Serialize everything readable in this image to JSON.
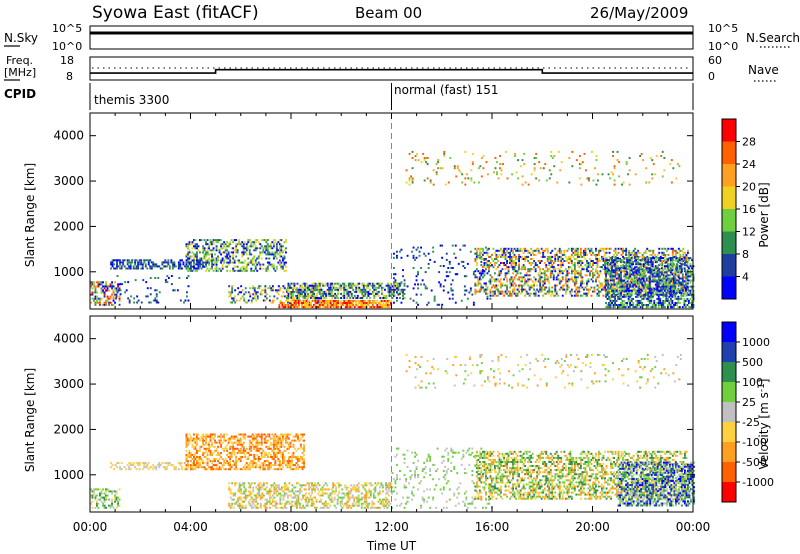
{
  "header": {
    "station": "Syowa East (fitACF)",
    "beam": "Beam 00",
    "date": "26/May/2009"
  },
  "colors": {
    "power_scale": [
      "#0000ff",
      "#1f3fa0",
      "#2f8f4f",
      "#6fcf3f",
      "#f0d020",
      "#ffa020",
      "#ff6000",
      "#ff0000"
    ],
    "velocity_scale": [
      "#0000ff",
      "#2040b0",
      "#2f8f4f",
      "#6fcf3f",
      "#c0c0c0",
      "#ffd040",
      "#ffa020",
      "#ff6000",
      "#ff0000"
    ]
  },
  "chart_data": [
    {
      "type": "line",
      "name": "nsky-panel",
      "ylabel": "N.Sky",
      "ylabel_right": "N.Search",
      "legend_right_style": "dotted",
      "y_ticks_left": [
        "10^5",
        "10^0"
      ],
      "y_ticks_right": [
        "10^5",
        "10^0"
      ]
    },
    {
      "type": "line",
      "name": "freq-panel",
      "ylabel": "Freq.",
      "ylabel_unit": "[MHz]",
      "ylabel_right": "Nave",
      "legend_right_style": "dotted",
      "y_ticks_left": [
        "18",
        "8"
      ],
      "y_ticks_right": [
        "60",
        "0"
      ],
      "series": [
        {
          "name": "Freq.",
          "x": [
            0,
            5.0,
            5.0,
            18.0,
            18.0,
            24
          ],
          "values": [
            11.0,
            11.0,
            12.5,
            12.5,
            11.0,
            11.0
          ]
        }
      ]
    },
    {
      "type": "table",
      "name": "cpid-bar",
      "label": "CPID",
      "segments": [
        {
          "start": 0,
          "end": 12,
          "label": "themis 3300"
        },
        {
          "start": 12,
          "end": 24,
          "label": "normal (fast) 151"
        }
      ]
    },
    {
      "type": "heatmap",
      "name": "power-panel",
      "ylabel": "Slant Range [km]",
      "ylim": [
        180,
        4500
      ],
      "y_ticks": [
        1000,
        2000,
        3000,
        4000
      ],
      "xlim": [
        0,
        24
      ],
      "colorbar": {
        "label": "Power [dB]",
        "ticks": [
          "4",
          "8",
          "12",
          "16",
          "20",
          "24",
          "28"
        ]
      },
      "bands": [
        {
          "t0": 0.0,
          "t1": 1.2,
          "r0": 250,
          "r1": 750,
          "density": 0.5,
          "levels": [
            0,
            1,
            2,
            3,
            5,
            6,
            7
          ]
        },
        {
          "t0": 0.8,
          "t1": 4.5,
          "r0": 1050,
          "r1": 1250,
          "density": 0.5,
          "levels": [
            0,
            1,
            2
          ]
        },
        {
          "t0": 1.0,
          "t1": 4.0,
          "r0": 300,
          "r1": 900,
          "density": 0.08,
          "levels": [
            0,
            1,
            2
          ]
        },
        {
          "t0": 3.8,
          "t1": 7.8,
          "r0": 1000,
          "r1": 1700,
          "density": 0.45,
          "levels": [
            0,
            1,
            2,
            3,
            4
          ]
        },
        {
          "t0": 5.5,
          "t1": 9.2,
          "r0": 300,
          "r1": 700,
          "density": 0.3,
          "levels": [
            0,
            1,
            2,
            3,
            4,
            5
          ]
        },
        {
          "t0": 7.5,
          "t1": 12.0,
          "r0": 200,
          "r1": 380,
          "density": 0.75,
          "levels": [
            4,
            5,
            6,
            7
          ]
        },
        {
          "t0": 7.8,
          "t1": 12.5,
          "r0": 400,
          "r1": 750,
          "density": 0.6,
          "levels": [
            0,
            1,
            2,
            3,
            4
          ]
        },
        {
          "t0": 12.0,
          "t1": 16.0,
          "r0": 250,
          "r1": 1600,
          "density": 0.08,
          "levels": [
            0,
            1,
            2
          ]
        },
        {
          "t0": 15.3,
          "t1": 23.8,
          "r0": 450,
          "r1": 1500,
          "density": 0.45,
          "levels": [
            0,
            1,
            2,
            3,
            4,
            5,
            6
          ]
        },
        {
          "t0": 12.5,
          "t1": 23.5,
          "r0": 2900,
          "r1": 3650,
          "density": 0.06,
          "levels": [
            2,
            3,
            4,
            5,
            6
          ]
        },
        {
          "t0": 20.5,
          "t1": 24.0,
          "r0": 200,
          "r1": 1300,
          "density": 0.55,
          "levels": [
            0,
            1,
            2,
            3
          ]
        }
      ]
    },
    {
      "type": "heatmap",
      "name": "velocity-panel",
      "ylabel": "Slant Range [km]",
      "xlabel": "Time UT",
      "ylim": [
        180,
        4500
      ],
      "y_ticks": [
        1000,
        2000,
        3000,
        4000
      ],
      "xlim": [
        0,
        24
      ],
      "x_ticks": [
        0,
        4,
        8,
        12,
        16,
        20,
        24
      ],
      "x_tick_labels": [
        "00:00",
        "04:00",
        "08:00",
        "12:00",
        "16:00",
        "20:00",
        "00:00"
      ],
      "colorbar": {
        "label": "Velocity [m s",
        "label_sup": "-1",
        "label_end": "]",
        "ticks": [
          "1000",
          "500",
          "100",
          "25",
          "-25",
          "-100",
          "-500",
          "-1000"
        ]
      },
      "bands": [
        {
          "t0": 0.0,
          "t1": 1.2,
          "r0": 250,
          "r1": 700,
          "density": 0.45,
          "levels": [
            2,
            3,
            4,
            5
          ]
        },
        {
          "t0": 0.8,
          "t1": 4.2,
          "r0": 1100,
          "r1": 1250,
          "density": 0.45,
          "levels": [
            4,
            5
          ]
        },
        {
          "t0": 3.8,
          "t1": 8.5,
          "r0": 1100,
          "r1": 1900,
          "density": 0.5,
          "levels": [
            5,
            6,
            7
          ]
        },
        {
          "t0": 5.5,
          "t1": 12.0,
          "r0": 250,
          "r1": 800,
          "density": 0.45,
          "levels": [
            3,
            4,
            5,
            6
          ]
        },
        {
          "t0": 12.0,
          "t1": 16.0,
          "r0": 250,
          "r1": 1600,
          "density": 0.1,
          "levels": [
            3,
            4
          ]
        },
        {
          "t0": 15.3,
          "t1": 23.8,
          "r0": 450,
          "r1": 1500,
          "density": 0.45,
          "levels": [
            2,
            3,
            5,
            6
          ]
        },
        {
          "t0": 12.5,
          "t1": 23.5,
          "r0": 2900,
          "r1": 3650,
          "density": 0.06,
          "levels": [
            3,
            4,
            5,
            6
          ]
        },
        {
          "t0": 21.0,
          "t1": 24.0,
          "r0": 300,
          "r1": 1250,
          "density": 0.55,
          "levels": [
            0,
            1,
            2,
            3,
            4
          ]
        }
      ]
    }
  ]
}
